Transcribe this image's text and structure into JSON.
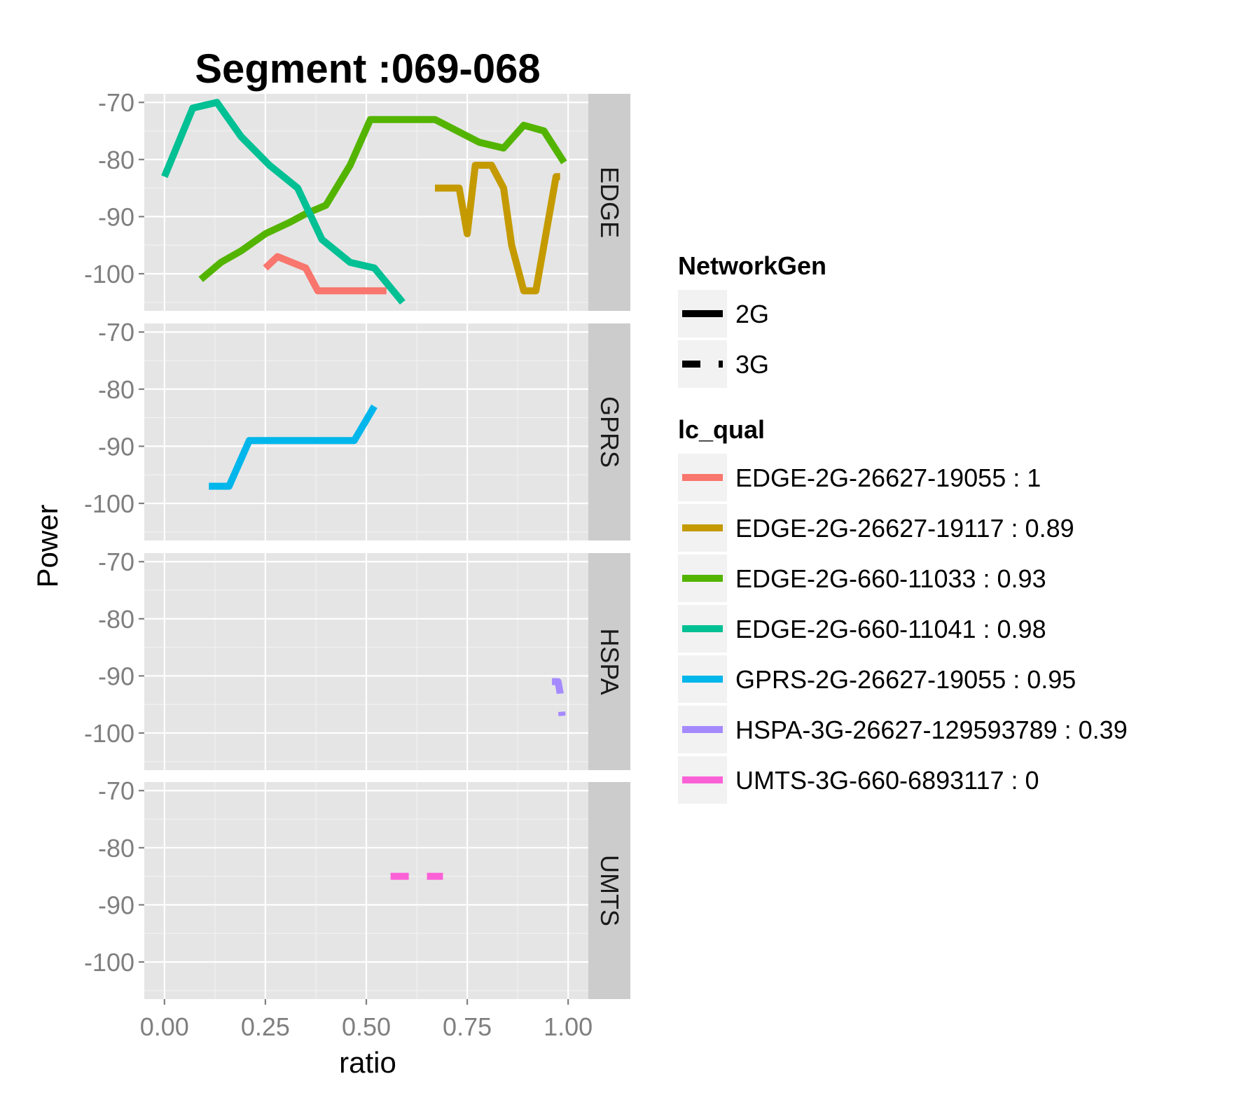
{
  "chart_data": {
    "type": "line",
    "title": "Segment :069-068",
    "xlabel": "ratio",
    "ylabel": "Power",
    "xlim": [
      -0.05,
      1.05
    ],
    "ylim": [
      -106.5,
      -68.5
    ],
    "x_ticks": [
      0,
      0.25,
      0.5,
      0.75,
      1
    ],
    "x_tick_labels": [
      "0.00",
      "0.25",
      "0.50",
      "0.75",
      "1.00"
    ],
    "y_ticks": [
      -100,
      -90,
      -80,
      -70
    ],
    "y_tick_labels": [
      "-100",
      "-90",
      "-80",
      "-70"
    ],
    "grid": true,
    "legend_position": "right",
    "facets": [
      "EDGE",
      "GPRS",
      "HSPA",
      "UMTS"
    ],
    "legends": [
      {
        "title": "NetworkGen",
        "entries": [
          {
            "label": "2G",
            "linetype": "solid"
          },
          {
            "label": "3G",
            "linetype": "dashed"
          }
        ]
      },
      {
        "title": "lc_qual",
        "entries": [
          {
            "label": "EDGE-2G-26627-19055 : 1",
            "color": "#F8766D"
          },
          {
            "label": "EDGE-2G-26627-19117 : 0.89",
            "color": "#C49A00"
          },
          {
            "label": "EDGE-2G-660-11033 : 0.93",
            "color": "#53B400"
          },
          {
            "label": "EDGE-2G-660-11041 : 0.98",
            "color": "#00C094"
          },
          {
            "label": "GPRS-2G-26627-19055 : 0.95",
            "color": "#00B6EB"
          },
          {
            "label": "HSPA-3G-26627-129593789 : 0.39",
            "color": "#A58AFF"
          },
          {
            "label": "UMTS-3G-660-6893117 : 0",
            "color": "#FB61D7"
          }
        ]
      }
    ],
    "series": [
      {
        "name": "EDGE-2G-26627-19055 : 1",
        "facet": "EDGE",
        "color": "#F8766D",
        "linetype": "solid",
        "x": [
          0.25,
          0.28,
          0.35,
          0.38,
          0.42,
          0.5,
          0.55
        ],
        "y": [
          -99,
          -97,
          -99,
          -103,
          -103,
          -103,
          -103
        ]
      },
      {
        "name": "EDGE-2G-26627-19117 : 0.89",
        "facet": "EDGE",
        "color": "#C49A00",
        "linetype": "solid",
        "x": [
          0.67,
          0.73,
          0.75,
          0.77,
          0.81,
          0.84,
          0.86,
          0.89,
          0.92,
          0.94,
          0.97,
          0.98
        ],
        "y": [
          -85,
          -85,
          -93,
          -81,
          -81,
          -85,
          -95,
          -103,
          -103,
          -95,
          -83,
          -83
        ]
      },
      {
        "name": "EDGE-2G-660-11033 : 0.93",
        "facet": "EDGE",
        "color": "#53B400",
        "linetype": "solid",
        "x": [
          0.09,
          0.14,
          0.19,
          0.25,
          0.31,
          0.35,
          0.4,
          0.46,
          0.51,
          0.58,
          0.67,
          0.78,
          0.84,
          0.89,
          0.94,
          0.99
        ],
        "y": [
          -101,
          -98,
          -96,
          -93,
          -91,
          -89.5,
          -88,
          -81,
          -73,
          -73,
          -73,
          -77,
          -78,
          -74,
          -75,
          -80.5
        ]
      },
      {
        "name": "EDGE-2G-660-11041 : 0.98",
        "facet": "EDGE",
        "color": "#00C094",
        "linetype": "solid",
        "x": [
          0.0,
          0.07,
          0.13,
          0.19,
          0.26,
          0.33,
          0.39,
          0.46,
          0.52,
          0.59
        ],
        "y": [
          -83,
          -71,
          -70,
          -76,
          -81,
          -85,
          -94,
          -98,
          -99,
          -105
        ]
      },
      {
        "name": "GPRS-2G-26627-19055 : 0.95",
        "facet": "GPRS",
        "color": "#00B6EB",
        "linetype": "solid",
        "x": [
          0.11,
          0.16,
          0.21,
          0.47,
          0.52
        ],
        "y": [
          -97,
          -97,
          -89,
          -89,
          -83
        ]
      },
      {
        "name": "HSPA-3G-26627-129593789 : 0.39",
        "facet": "HSPA",
        "color": "#A58AFF",
        "linetype": "dashed",
        "x": [
          0.96,
          0.975,
          0.98,
          0.985
        ],
        "y": [
          -91,
          -91,
          -93,
          -97
        ]
      },
      {
        "name": "UMTS-3G-660-6893117 : 0",
        "facet": "UMTS",
        "color": "#FB61D7",
        "linetype": "dashed",
        "x": [
          0.56,
          0.69
        ],
        "y": [
          -85,
          -85
        ]
      }
    ]
  }
}
